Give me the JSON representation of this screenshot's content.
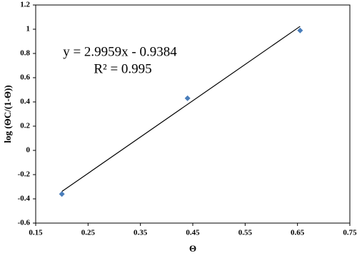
{
  "chart_data": {
    "type": "scatter",
    "x_label": "Θ",
    "y_label": "log (ΘC/(1-Θ))",
    "x": [
      0.2,
      0.44,
      0.655
    ],
    "values": [
      -0.36,
      0.43,
      0.99
    ],
    "color": "#4a7ebb",
    "trendline": {
      "x": [
        0.2,
        0.655
      ],
      "y": [
        -0.3392,
        1.0239
      ],
      "color": "#000000"
    },
    "annotations": [
      "y = 2.9959x - 0.9384",
      "R² = 0.995"
    ],
    "xlim": [
      0.15,
      0.75
    ],
    "xticks": [
      0.15,
      0.25,
      0.35,
      0.45,
      0.55,
      0.65,
      0.75
    ],
    "ylim": [
      -0.6,
      1.2
    ],
    "yticks": [
      -0.6,
      -0.4,
      -0.2,
      0,
      0.2,
      0.4,
      0.6,
      0.8,
      1,
      1.2
    ],
    "grid": false
  }
}
